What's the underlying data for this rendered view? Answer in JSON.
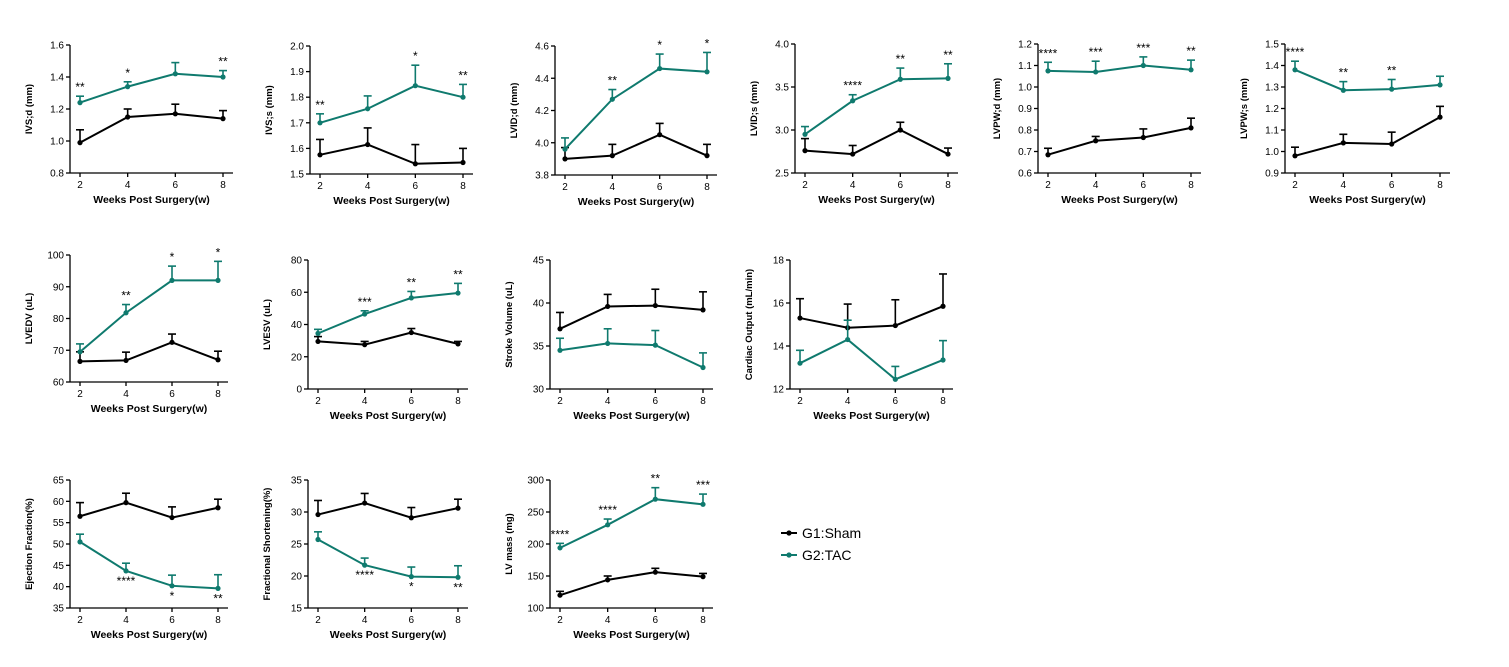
{
  "chart_data": [
    {
      "type": "line",
      "ylabel": "IVS;d (mm)",
      "xlabel": "Weeks Post Surgery(w)",
      "ylim": [
        0.8,
        1.6
      ],
      "yticks": [
        0.8,
        1.0,
        1.2,
        1.4,
        1.6
      ],
      "ytick_labels": [
        "0.8",
        "1.0",
        "1.2",
        "1.4",
        "1.6"
      ],
      "x": [
        2,
        4,
        6,
        8
      ],
      "xtick_labels": [
        "2",
        "4",
        "6",
        "8"
      ],
      "series": [
        {
          "name": "G1:Sham",
          "values": [
            0.99,
            1.15,
            1.17,
            1.14
          ],
          "errors": [
            0.08,
            0.05,
            0.06,
            0.05
          ]
        },
        {
          "name": "G2:TAC",
          "values": [
            1.24,
            1.34,
            1.42,
            1.4
          ],
          "errors": [
            0.04,
            0.03,
            0.07,
            0.04
          ]
        }
      ],
      "significance": [
        {
          "x": 2,
          "label": "**",
          "pos": "above"
        },
        {
          "x": 4,
          "label": "*",
          "pos": "above"
        },
        {
          "x": 8,
          "label": "**",
          "pos": "above"
        }
      ]
    },
    {
      "type": "line",
      "ylabel": "IVS;s (mm)",
      "xlabel": "Weeks Post Surgery(w)",
      "ylim": [
        1.5,
        2.0
      ],
      "yticks": [
        1.5,
        1.6,
        1.7,
        1.8,
        1.9,
        2.0
      ],
      "ytick_labels": [
        "1.5",
        "1.6",
        "1.7",
        "1.8",
        "1.9",
        "2.0"
      ],
      "x": [
        2,
        4,
        6,
        8
      ],
      "xtick_labels": [
        "2",
        "4",
        "6",
        "8"
      ],
      "series": [
        {
          "name": "G1:Sham",
          "values": [
            1.575,
            1.615,
            1.54,
            1.545
          ],
          "errors": [
            0.06,
            0.065,
            0.075,
            0.055
          ]
        },
        {
          "name": "G2:TAC",
          "values": [
            1.7,
            1.755,
            1.845,
            1.8
          ],
          "errors": [
            0.035,
            0.05,
            0.08,
            0.05
          ]
        }
      ],
      "significance": [
        {
          "x": 2,
          "label": "**",
          "pos": "above"
        },
        {
          "x": 6,
          "label": "*",
          "pos": "above"
        },
        {
          "x": 8,
          "label": "**",
          "pos": "above"
        }
      ]
    },
    {
      "type": "line",
      "ylabel": "LVID;d (mm)",
      "xlabel": "Weeks Post Surgery(w)",
      "ylim": [
        3.8,
        4.6
      ],
      "yticks": [
        3.8,
        4.0,
        4.2,
        4.4,
        4.6
      ],
      "ytick_labels": [
        "3.8",
        "4.0",
        "4.2",
        "4.4",
        "4.6"
      ],
      "x": [
        2,
        4,
        6,
        8
      ],
      "xtick_labels": [
        "2",
        "4",
        "6",
        "8"
      ],
      "series": [
        {
          "name": "G1:Sham",
          "values": [
            3.9,
            3.92,
            4.05,
            3.92
          ],
          "errors": [
            0.07,
            0.07,
            0.07,
            0.07
          ]
        },
        {
          "name": "G2:TAC",
          "values": [
            3.96,
            4.27,
            4.46,
            4.44
          ],
          "errors": [
            0.07,
            0.06,
            0.09,
            0.12
          ]
        }
      ],
      "significance": [
        {
          "x": 4,
          "label": "**",
          "pos": "above"
        },
        {
          "x": 6,
          "label": "*",
          "pos": "above"
        },
        {
          "x": 8,
          "label": "*",
          "pos": "above"
        }
      ]
    },
    {
      "type": "line",
      "ylabel": "LVID;s (mm)",
      "xlabel": "Weeks Post Surgery(w)",
      "ylim": [
        2.5,
        4.0
      ],
      "yticks": [
        2.5,
        3.0,
        3.5,
        4.0
      ],
      "ytick_labels": [
        "2.5",
        "3.0",
        "3.5",
        "4.0"
      ],
      "x": [
        2,
        4,
        6,
        8
      ],
      "xtick_labels": [
        "2",
        "4",
        "6",
        "8"
      ],
      "series": [
        {
          "name": "G1:Sham",
          "values": [
            2.76,
            2.72,
            3.0,
            2.72
          ],
          "errors": [
            0.14,
            0.1,
            0.09,
            0.07
          ]
        },
        {
          "name": "G2:TAC",
          "values": [
            2.95,
            3.34,
            3.59,
            3.6
          ],
          "errors": [
            0.09,
            0.07,
            0.13,
            0.17
          ]
        }
      ],
      "significance": [
        {
          "x": 4,
          "label": "****",
          "pos": "above"
        },
        {
          "x": 6,
          "label": "**",
          "pos": "above"
        },
        {
          "x": 8,
          "label": "**",
          "pos": "above"
        }
      ]
    },
    {
      "type": "line",
      "ylabel": "LVPW;d (mm)",
      "xlabel": "Weeks Post Surgery(w)",
      "ylim": [
        0.6,
        1.2
      ],
      "yticks": [
        0.6,
        0.7,
        0.8,
        0.9,
        1.0,
        1.1,
        1.2
      ],
      "ytick_labels": [
        "0.6",
        "0.7",
        "0.8",
        "0.9",
        "1.0",
        "1.1",
        "1.2"
      ],
      "x": [
        2,
        4,
        6,
        8
      ],
      "xtick_labels": [
        "2",
        "4",
        "6",
        "8"
      ],
      "series": [
        {
          "name": "G1:Sham",
          "values": [
            0.685,
            0.75,
            0.765,
            0.81
          ],
          "errors": [
            0.03,
            0.02,
            0.04,
            0.045
          ]
        },
        {
          "name": "G2:TAC",
          "values": [
            1.075,
            1.07,
            1.1,
            1.08
          ],
          "errors": [
            0.04,
            0.05,
            0.04,
            0.045
          ]
        }
      ],
      "significance": [
        {
          "x": 2,
          "label": "****",
          "pos": "above"
        },
        {
          "x": 4,
          "label": "***",
          "pos": "above"
        },
        {
          "x": 6,
          "label": "***",
          "pos": "above"
        },
        {
          "x": 8,
          "label": "**",
          "pos": "above"
        }
      ]
    },
    {
      "type": "line",
      "ylabel": "LVPW;s (mm)",
      "xlabel": "Weeks Post Surgery(w)",
      "ylim": [
        0.9,
        1.5
      ],
      "yticks": [
        0.9,
        1.0,
        1.1,
        1.2,
        1.3,
        1.4,
        1.5
      ],
      "ytick_labels": [
        "0.9",
        "1.0",
        "1.1",
        "1.2",
        "1.3",
        "1.4",
        "1.5"
      ],
      "x": [
        2,
        4,
        6,
        8
      ],
      "xtick_labels": [
        "2",
        "4",
        "6",
        "8"
      ],
      "series": [
        {
          "name": "G1:Sham",
          "values": [
            0.98,
            1.04,
            1.035,
            1.16
          ],
          "errors": [
            0.04,
            0.04,
            0.055,
            0.05
          ]
        },
        {
          "name": "G2:TAC",
          "values": [
            1.38,
            1.285,
            1.29,
            1.31
          ],
          "errors": [
            0.04,
            0.04,
            0.045,
            0.04
          ]
        }
      ],
      "significance": [
        {
          "x": 2,
          "label": "****",
          "pos": "above"
        },
        {
          "x": 4,
          "label": "**",
          "pos": "above"
        },
        {
          "x": 6,
          "label": "**",
          "pos": "above"
        }
      ]
    },
    {
      "type": "line",
      "ylabel": "LVEDV (uL)",
      "xlabel": "Weeks Post Surgery(w)",
      "ylim": [
        60,
        100
      ],
      "yticks": [
        60,
        70,
        80,
        90,
        100
      ],
      "ytick_labels": [
        "60",
        "70",
        "80",
        "90",
        "100"
      ],
      "x": [
        2,
        4,
        6,
        8
      ],
      "xtick_labels": [
        "2",
        "4",
        "6",
        "8"
      ],
      "series": [
        {
          "name": "G1:Sham",
          "values": [
            66.5,
            66.8,
            72.5,
            67
          ],
          "errors": [
            3,
            2.6,
            2.6,
            2.7
          ]
        },
        {
          "name": "G2:TAC",
          "values": [
            69.5,
            81.8,
            92.0,
            92.0
          ],
          "errors": [
            2.5,
            2.6,
            4.5,
            6
          ]
        }
      ],
      "significance": [
        {
          "x": 4,
          "label": "**",
          "pos": "above"
        },
        {
          "x": 6,
          "label": "*",
          "pos": "above"
        },
        {
          "x": 8,
          "label": "*",
          "pos": "above"
        }
      ]
    },
    {
      "type": "line",
      "ylabel": "LVESV (uL)",
      "xlabel": "Weeks Post Surgery(w)",
      "ylim": [
        0,
        80
      ],
      "yticks": [
        0,
        20,
        40,
        60,
        80
      ],
      "ytick_labels": [
        "0",
        "20",
        "40",
        "60",
        "80"
      ],
      "x": [
        2,
        4,
        6,
        8
      ],
      "xtick_labels": [
        "2",
        "4",
        "6",
        "8"
      ],
      "series": [
        {
          "name": "G1:Sham",
          "values": [
            29.5,
            27.5,
            35,
            28
          ],
          "errors": [
            3,
            2,
            2.5,
            1.5
          ]
        },
        {
          "name": "G2:TAC",
          "values": [
            34.5,
            46.5,
            56.5,
            59.5
          ],
          "errors": [
            2.5,
            2,
            4,
            6
          ]
        }
      ],
      "significance": [
        {
          "x": 4,
          "label": "***",
          "pos": "above"
        },
        {
          "x": 6,
          "label": "**",
          "pos": "above"
        },
        {
          "x": 8,
          "label": "**",
          "pos": "above"
        }
      ]
    },
    {
      "type": "line",
      "ylabel": "Stroke Volume (uL)",
      "xlabel": "Weeks Post Surgery(w)",
      "ylim": [
        30,
        45
      ],
      "yticks": [
        30,
        35,
        40,
        45
      ],
      "ytick_labels": [
        "30",
        "35",
        "40",
        "45"
      ],
      "x": [
        2,
        4,
        6,
        8
      ],
      "xtick_labels": [
        "2",
        "4",
        "6",
        "8"
      ],
      "series": [
        {
          "name": "G1:Sham",
          "values": [
            37,
            39.6,
            39.7,
            39.2
          ],
          "errors": [
            1.9,
            1.4,
            1.9,
            2.1
          ]
        },
        {
          "name": "G2:TAC",
          "values": [
            34.5,
            35.3,
            35.1,
            32.5
          ],
          "errors": [
            1.4,
            1.7,
            1.7,
            1.7
          ]
        }
      ],
      "significance": []
    },
    {
      "type": "line",
      "ylabel": "Cardiac Output (mL/min)",
      "xlabel": "Weeks Post Surgery(w)",
      "ylim": [
        12,
        18
      ],
      "yticks": [
        12,
        14,
        16,
        18
      ],
      "ytick_labels": [
        "12",
        "14",
        "16",
        "18"
      ],
      "x": [
        2,
        4,
        6,
        8
      ],
      "xtick_labels": [
        "2",
        "4",
        "6",
        "8"
      ],
      "series": [
        {
          "name": "G1:Sham",
          "values": [
            15.3,
            14.85,
            14.95,
            15.85
          ],
          "errors": [
            0.9,
            1.1,
            1.2,
            1.5
          ]
        },
        {
          "name": "G2:TAC",
          "values": [
            13.2,
            14.3,
            12.45,
            13.35
          ],
          "errors": [
            0.6,
            0.9,
            0.6,
            0.9
          ]
        }
      ],
      "significance": []
    },
    {
      "type": "line",
      "ylabel": "Ejection Fraction(%)",
      "xlabel": "Weeks Post Surgery(w)",
      "ylim": [
        35,
        65
      ],
      "yticks": [
        35,
        40,
        45,
        50,
        55,
        60,
        65
      ],
      "ytick_labels": [
        "35",
        "40",
        "45",
        "50",
        "55",
        "60",
        "65"
      ],
      "x": [
        2,
        4,
        6,
        8
      ],
      "xtick_labels": [
        "2",
        "4",
        "6",
        "8"
      ],
      "series": [
        {
          "name": "G1:Sham",
          "values": [
            56.5,
            59.7,
            56.2,
            58.5
          ],
          "errors": [
            3.2,
            2.2,
            2.5,
            2
          ]
        },
        {
          "name": "G2:TAC",
          "values": [
            50.5,
            43.7,
            40.2,
            39.6
          ],
          "errors": [
            1.8,
            1.8,
            2.5,
            3.2
          ]
        }
      ],
      "significance": [
        {
          "x": 4,
          "label": "****",
          "pos": "below"
        },
        {
          "x": 6,
          "label": "*",
          "pos": "below"
        },
        {
          "x": 8,
          "label": "**",
          "pos": "below"
        }
      ]
    },
    {
      "type": "line",
      "ylabel": "Fractional Shortening(%)",
      "xlabel": "Weeks Post Surgery(w)",
      "ylim": [
        15,
        35
      ],
      "yticks": [
        15,
        20,
        25,
        30,
        35
      ],
      "ytick_labels": [
        "15",
        "20",
        "25",
        "30",
        "35"
      ],
      "x": [
        2,
        4,
        6,
        8
      ],
      "xtick_labels": [
        "2",
        "4",
        "6",
        "8"
      ],
      "series": [
        {
          "name": "G1:Sham",
          "values": [
            29.6,
            31.4,
            29.1,
            30.6
          ],
          "errors": [
            2.2,
            1.5,
            1.6,
            1.4
          ]
        },
        {
          "name": "G2:TAC",
          "values": [
            25.7,
            21.7,
            19.9,
            19.8
          ],
          "errors": [
            1.2,
            1.1,
            1.5,
            1.8
          ]
        }
      ],
      "significance": [
        {
          "x": 4,
          "label": "****",
          "pos": "below"
        },
        {
          "x": 6,
          "label": "*",
          "pos": "below"
        },
        {
          "x": 8,
          "label": "**",
          "pos": "below"
        }
      ]
    },
    {
      "type": "line",
      "ylabel": "LV mass (mg)",
      "xlabel": "Weeks Post Surgery(w)",
      "ylim": [
        100,
        300
      ],
      "yticks": [
        100,
        150,
        200,
        250,
        300
      ],
      "ytick_labels": [
        "100",
        "150",
        "200",
        "250",
        "300"
      ],
      "x": [
        2,
        4,
        6,
        8
      ],
      "xtick_labels": [
        "2",
        "4",
        "6",
        "8"
      ],
      "series": [
        {
          "name": "G1:Sham",
          "values": [
            120,
            144,
            156,
            149
          ],
          "errors": [
            6,
            6,
            6,
            5
          ]
        },
        {
          "name": "G2:TAC",
          "values": [
            194,
            230,
            270,
            262
          ],
          "errors": [
            7,
            9,
            18,
            16
          ]
        }
      ],
      "significance": [
        {
          "x": 2,
          "label": "****",
          "pos": "above"
        },
        {
          "x": 4,
          "label": "****",
          "pos": "above"
        },
        {
          "x": 6,
          "label": "**",
          "pos": "above"
        },
        {
          "x": 8,
          "label": "***",
          "pos": "above"
        }
      ]
    }
  ],
  "legend": {
    "entries": [
      {
        "label": "G1:Sham",
        "color": "#000000"
      },
      {
        "label": "G2:TAC",
        "color": "#0f7a6e"
      }
    ]
  },
  "colors": {
    "sham": "#000000",
    "tac": "#0f7a6e"
  }
}
